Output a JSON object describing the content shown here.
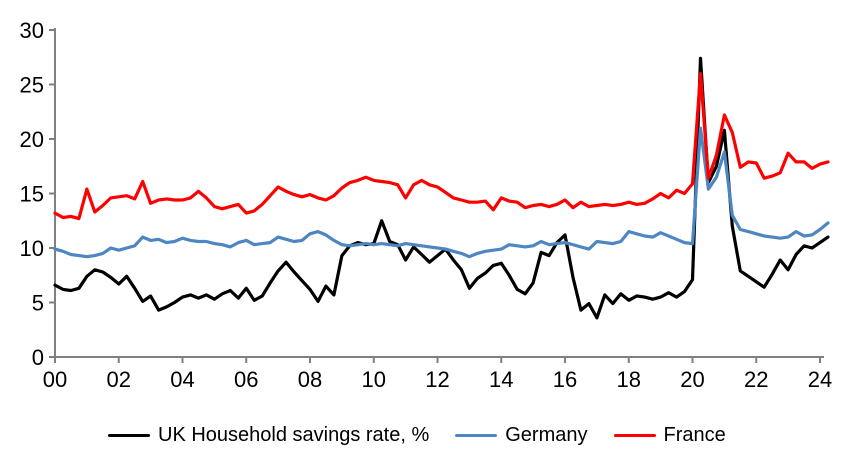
{
  "chart_data": {
    "type": "line",
    "title": "",
    "xlabel": "",
    "ylabel": "",
    "ylim": [
      0,
      30
    ],
    "y_ticks": [
      0,
      5,
      10,
      15,
      20,
      25,
      30
    ],
    "x_ticks": [
      "00",
      "02",
      "04",
      "06",
      "08",
      "10",
      "12",
      "14",
      "16",
      "18",
      "20",
      "22",
      "24"
    ],
    "x_tick_years": [
      2000,
      2002,
      2004,
      2006,
      2008,
      2010,
      2012,
      2014,
      2016,
      2018,
      2020,
      2022,
      2024
    ],
    "x_start": 2000,
    "x_step": 0.25,
    "x_unit": "quarterly",
    "grid": false,
    "legend_position": "bottom",
    "axis_color": "#808080",
    "background": "#ffffff",
    "series": [
      {
        "name": "UK Household savings rate, %",
        "color": "#000000",
        "values": [
          6.6,
          6.2,
          6.1,
          6.3,
          7.4,
          8.0,
          7.8,
          7.3,
          6.7,
          7.4,
          6.3,
          5.1,
          5.6,
          4.3,
          4.6,
          5.0,
          5.5,
          5.7,
          5.4,
          5.7,
          5.3,
          5.8,
          6.1,
          5.4,
          6.3,
          5.2,
          5.6,
          6.8,
          7.9,
          8.7,
          7.8,
          7.0,
          6.2,
          5.1,
          6.5,
          5.7,
          9.3,
          10.2,
          10.5,
          10.3,
          10.4,
          12.5,
          10.6,
          10.3,
          8.9,
          10.1,
          9.4,
          8.7,
          9.3,
          9.9,
          8.9,
          8.0,
          6.3,
          7.2,
          7.7,
          8.4,
          8.6,
          7.5,
          6.2,
          5.8,
          6.8,
          9.6,
          9.3,
          10.5,
          11.2,
          7.3,
          4.3,
          4.9,
          3.6,
          5.7,
          4.9,
          5.8,
          5.2,
          5.6,
          5.5,
          5.3,
          5.5,
          5.9,
          5.5,
          6.0,
          7.1,
          27.4,
          16.0,
          17.5,
          20.8,
          12.0,
          7.9,
          7.4,
          6.9,
          6.4,
          7.6,
          8.9,
          8.0,
          9.4,
          10.2,
          10.0,
          10.5,
          11.0
        ]
      },
      {
        "name": "Germany",
        "color": "#4e86c2",
        "values": [
          9.9,
          9.7,
          9.4,
          9.3,
          9.2,
          9.3,
          9.5,
          10.0,
          9.8,
          10.0,
          10.2,
          11.0,
          10.7,
          10.8,
          10.5,
          10.6,
          10.9,
          10.7,
          10.6,
          10.6,
          10.4,
          10.3,
          10.1,
          10.5,
          10.7,
          10.3,
          10.4,
          10.5,
          11.0,
          10.8,
          10.6,
          10.7,
          11.3,
          11.5,
          11.2,
          10.7,
          10.3,
          10.2,
          10.3,
          10.4,
          10.3,
          10.4,
          10.3,
          10.2,
          10.4,
          10.3,
          10.2,
          10.1,
          10.0,
          9.9,
          9.7,
          9.5,
          9.2,
          9.5,
          9.7,
          9.8,
          9.9,
          10.3,
          10.2,
          10.1,
          10.2,
          10.6,
          10.3,
          10.4,
          10.5,
          10.3,
          10.1,
          9.9,
          10.6,
          10.5,
          10.4,
          10.6,
          11.5,
          11.3,
          11.1,
          11.0,
          11.4,
          11.1,
          10.8,
          10.5,
          10.4,
          21.0,
          15.4,
          16.5,
          18.8,
          13.0,
          11.7,
          11.5,
          11.3,
          11.1,
          11.0,
          10.9,
          11.0,
          11.5,
          11.1,
          11.2,
          11.7,
          12.3
        ]
      },
      {
        "name": "France",
        "color": "#ff0000",
        "values": [
          13.2,
          12.8,
          12.9,
          12.7,
          15.4,
          13.3,
          13.9,
          14.6,
          14.7,
          14.8,
          14.5,
          16.1,
          14.1,
          14.4,
          14.5,
          14.4,
          14.4,
          14.6,
          15.2,
          14.6,
          13.8,
          13.6,
          13.8,
          14.0,
          13.2,
          13.4,
          14.0,
          14.8,
          15.6,
          15.2,
          14.9,
          14.7,
          14.9,
          14.6,
          14.4,
          14.8,
          15.5,
          16.0,
          16.2,
          16.5,
          16.2,
          16.1,
          16.0,
          15.8,
          14.6,
          15.8,
          16.2,
          15.8,
          15.6,
          15.1,
          14.6,
          14.4,
          14.2,
          14.2,
          14.3,
          13.5,
          14.6,
          14.3,
          14.2,
          13.7,
          13.9,
          14.0,
          13.8,
          14.0,
          14.4,
          13.7,
          14.2,
          13.8,
          13.9,
          14.0,
          13.9,
          14.0,
          14.2,
          14.0,
          14.1,
          14.5,
          15.0,
          14.6,
          15.3,
          15.0,
          15.9,
          26.0,
          16.4,
          18.5,
          22.2,
          20.6,
          17.4,
          17.9,
          17.8,
          16.4,
          16.6,
          16.9,
          18.7,
          17.9,
          17.9,
          17.3,
          17.7,
          17.9
        ]
      }
    ]
  },
  "legend": {
    "uk_label": "UK Household savings rate, %",
    "germany_label": "Germany",
    "france_label": "France"
  }
}
